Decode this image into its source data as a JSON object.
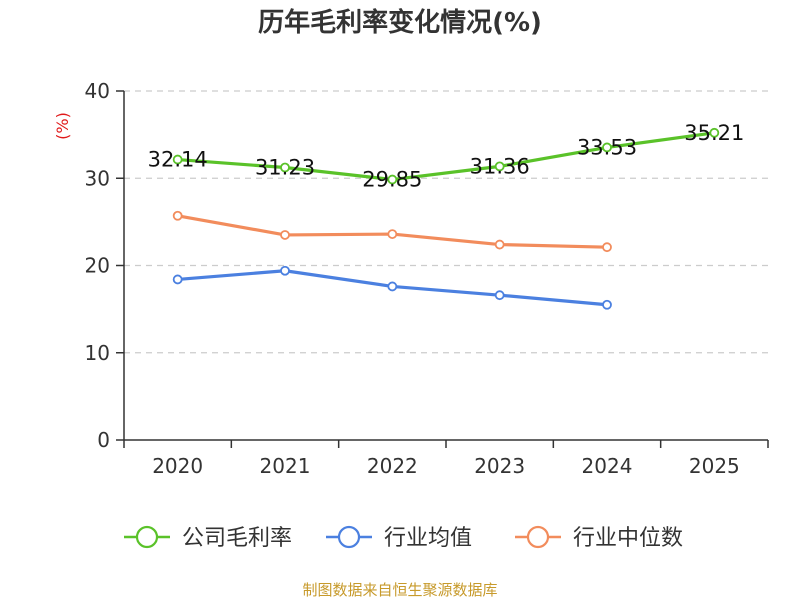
{
  "chart_data": {
    "type": "line",
    "title": "历年毛利率变化情况(%)",
    "ylabel": "(%)",
    "xlabel": "",
    "categories": [
      "2020",
      "2021",
      "2022",
      "2023",
      "2024",
      "2025"
    ],
    "yticks": [
      "0",
      "10",
      "20",
      "30",
      "40"
    ],
    "ylim": [
      0,
      40
    ],
    "grid": true,
    "legend_position": "bottom",
    "series": [
      {
        "name": "公司毛利率",
        "color": "#5ac229",
        "values": [
          32.14,
          31.23,
          29.85,
          31.36,
          33.53,
          35.21
        ],
        "labels": [
          "32.14",
          "31.23",
          "29.85",
          "31.36",
          "33.53",
          "35.21"
        ]
      },
      {
        "name": "行业均值",
        "color": "#4b80e0",
        "values": [
          18.4,
          19.4,
          17.6,
          16.6,
          15.5,
          null
        ]
      },
      {
        "name": "行业中位数",
        "color": "#f28c5c",
        "values": [
          25.7,
          23.5,
          23.6,
          22.4,
          22.1,
          null
        ]
      }
    ]
  },
  "footer": {
    "source": "制图数据来自恒生聚源数据库"
  }
}
